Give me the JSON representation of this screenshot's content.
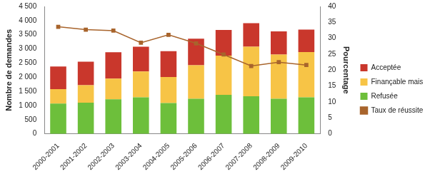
{
  "chart_data": {
    "type": "bar",
    "stacked": true,
    "grid": false,
    "legend": "right",
    "y_label": "Nombre de demandes",
    "y2_label": "Pourcentage",
    "categories": [
      "2000-2001",
      "2001-2002",
      "2002-2003",
      "2003-2004",
      "2004-2005",
      "2005-2006",
      "2006-2007",
      "2007-2008",
      "2008-2009",
      "2009-2010"
    ],
    "series": [
      {
        "name": "Refusée",
        "color": "#6dbf3b",
        "values": [
          1070,
          1100,
          1220,
          1290,
          1090,
          1240,
          1380,
          1330,
          1240,
          1290
        ]
      },
      {
        "name": "Finançable mais refusée",
        "color": "#f7c446",
        "values": [
          510,
          620,
          730,
          910,
          920,
          1180,
          1380,
          1750,
          1560,
          1600
        ]
      },
      {
        "name": "Acceptée",
        "color": "#c9372c",
        "values": [
          800,
          830,
          930,
          880,
          910,
          940,
          910,
          830,
          820,
          790
        ]
      },
      {
        "name": "Taux de réussite",
        "type": "line",
        "axis": "y2",
        "marker": "square",
        "color": "#a8642c",
        "values": [
          33.6,
          32.7,
          32.4,
          28.6,
          31.1,
          28.4,
          24.9,
          21.3,
          22.5,
          21.6
        ]
      }
    ],
    "ylim": [
      0,
      4500
    ],
    "yticks": [
      0,
      {
        "value": 500,
        "label": "500"
      },
      {
        "value": 1000,
        "label": "1 000"
      },
      {
        "value": 1500,
        "label": "1 500"
      },
      {
        "value": 2000,
        "label": "2 000"
      },
      {
        "value": 2500,
        "label": "2 500"
      },
      {
        "value": 3000,
        "label": "3 000"
      },
      {
        "value": 3500,
        "label": "3 500"
      },
      {
        "value": 4000,
        "label": "4 000"
      },
      {
        "value": 4500,
        "label": "4 500"
      }
    ],
    "y2lim": [
      0,
      40
    ],
    "y2ticks": [
      0,
      5,
      10,
      15,
      20,
      25,
      30,
      35,
      40
    ]
  }
}
